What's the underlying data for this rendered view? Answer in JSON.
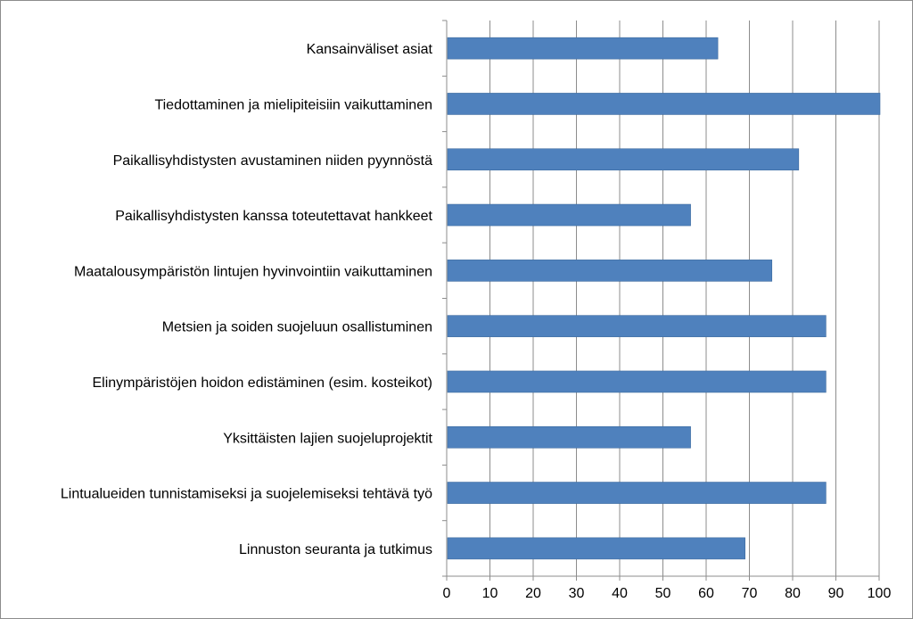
{
  "chart_data": {
    "type": "bar",
    "orientation": "horizontal",
    "title": "",
    "xlabel": "",
    "ylabel": "",
    "xlim": [
      0,
      100
    ],
    "x_ticks": [
      0,
      10,
      20,
      30,
      40,
      50,
      60,
      70,
      80,
      90,
      100
    ],
    "grid": "vertical",
    "legend": "none",
    "bar_color": "#4f81bd",
    "categories": [
      "Kansainväliset asiat",
      "Tiedottaminen ja mielipiteisiin vaikuttaminen",
      "Paikallisyhdistysten avustaminen niiden pyynnöstä",
      "Paikallisyhdistysten kanssa toteutettavat hankkeet",
      "Maatalousympäristön lintujen hyvinvointiin vaikuttaminen",
      "Metsien ja soiden suojeluun osallistuminen",
      "Elinympäristöjen hoidon edistäminen (esim. kosteikot)",
      "Yksittäisten lajien suojeluprojektit",
      "Lintualueiden tunnistamiseksi ja suojelemiseksi tehtävä työ",
      "Linnuston seuranta ja tutkimus"
    ],
    "values": [
      62.5,
      100,
      81.2,
      56.2,
      75,
      87.5,
      87.5,
      56.2,
      87.5,
      68.8
    ]
  }
}
